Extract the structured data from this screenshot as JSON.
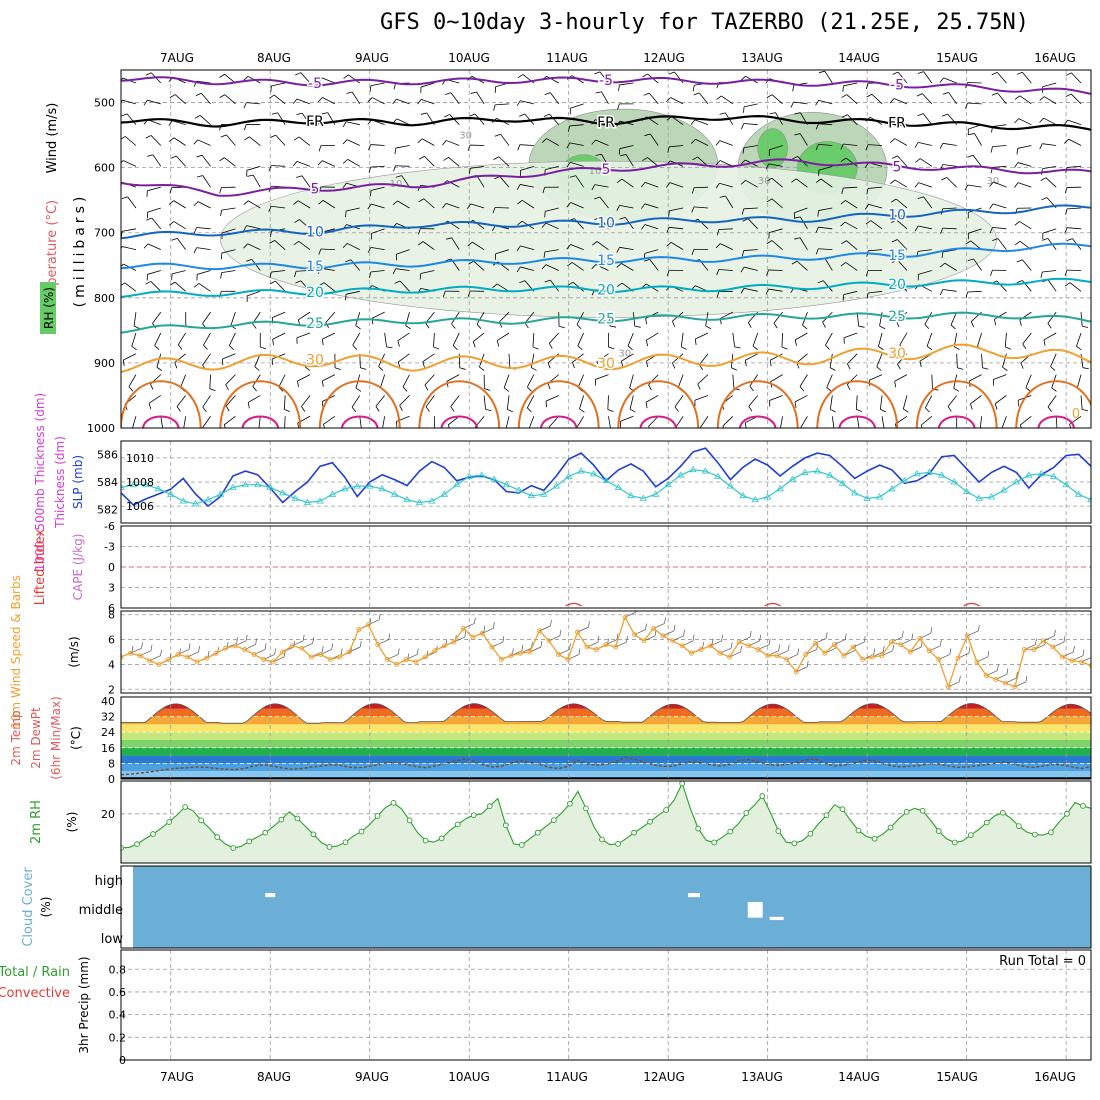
{
  "title": "GFS 0~10day 3-hourly for TAZERBO (21.25E, 25.75N)",
  "colors": {
    "grid": "#9a9a9a",
    "rh_shade_light": "#e6f2e4",
    "rh_shade_mid": "#b9d5b5",
    "rh_shade_dark": "#8fb18b",
    "rh_shade_green": "#66cc66",
    "temp_cold": "#7b1fa2",
    "temp_10": "#1565c0",
    "temp_15": "#1e88e5",
    "temp_20": "#00acc1",
    "temp_25": "#26a69a",
    "temp_30": "#f0a030",
    "temp_35": "#e07020",
    "temp_40": "#d81b8a",
    "freezing": "#000000",
    "slp": "#1f3fcf",
    "thickness": "#33c6cc",
    "lifted_index": "#e53935",
    "wind_speed": "#f0a030",
    "rh2m": "#2e9e2e",
    "rh2m_fill": "#e3f0de",
    "cloud": "#6baed6",
    "precip_total": "#2e9e2e",
    "precip_conv": "#e53935"
  },
  "chart_data": [
    {
      "panel": "upper-air",
      "type": "heatmap",
      "legend": [
        "Wind (m/s)",
        "Temperature (°C)",
        "RH (%)"
      ],
      "ylabel": "(millibars)",
      "ylim": [
        1000,
        450
      ],
      "y_ticks": [
        500,
        600,
        700,
        800,
        900,
        1000
      ],
      "x_ticks": [
        "7AUG",
        "8AUG",
        "9AUG",
        "10AUG",
        "11AUG",
        "12AUG",
        "13AUG",
        "14AUG",
        "15AUG",
        "16AUG"
      ],
      "x_tick_days": [
        0.5,
        1.5,
        2.5,
        3.5,
        4.5,
        5.5,
        6.5,
        7.5,
        8.5,
        9.5
      ],
      "x_range_days": [
        0.0,
        9.75
      ],
      "grid": true,
      "isotherms": [
        {
          "label": "-5",
          "levels_mb": [
            463,
            468,
            470,
            468,
            466,
            465,
            467,
            470,
            472,
            478,
            485
          ]
        },
        {
          "label": "FR",
          "levels_mb": [
            527,
            533,
            528,
            531,
            525,
            530,
            522,
            527,
            531,
            536,
            540
          ]
        },
        {
          "label": "5",
          "levels_mb": [
            620,
            640,
            632,
            628,
            612,
            602,
            596,
            590,
            598,
            603,
            608
          ]
        },
        {
          "label": "10",
          "levels_mb": [
            705,
            700,
            698,
            688,
            687,
            684,
            680,
            680,
            672,
            667,
            660
          ]
        },
        {
          "label": "15",
          "levels_mb": [
            751,
            752,
            751,
            748,
            744,
            742,
            741,
            738,
            734,
            725,
            719
          ]
        },
        {
          "label": "20",
          "levels_mb": [
            795,
            793,
            791,
            788,
            786,
            787,
            786,
            783,
            779,
            776,
            774
          ]
        },
        {
          "label": "25",
          "levels_mb": [
            850,
            842,
            839,
            835,
            836,
            832,
            830,
            828,
            828,
            826,
            835
          ]
        },
        {
          "label": "30",
          "levels_mb": [
            905,
            900,
            895,
            902,
            898,
            900,
            895,
            893,
            885,
            880,
            895
          ]
        }
      ],
      "contour_labels": [
        "-5",
        "FR",
        "5",
        "10",
        "15",
        "20",
        "25",
        "30",
        "0"
      ],
      "rh_contour_labels": [
        "30",
        "10"
      ],
      "rh_moist_regions": [
        {
          "t_days": [
            4.1,
            6.0
          ],
          "mb": [
            510,
            680
          ],
          "level": "dark"
        },
        {
          "t_days": [
            6.2,
            7.7
          ],
          "mb": [
            515,
            690
          ],
          "level": "dark"
        },
        {
          "t_days": [
            4.4,
            4.9
          ],
          "mb": [
            580,
            650
          ],
          "level": "green"
        },
        {
          "t_days": [
            6.4,
            6.7
          ],
          "mb": [
            540,
            600
          ],
          "level": "green"
        },
        {
          "t_days": [
            6.8,
            7.4
          ],
          "mb": [
            560,
            640
          ],
          "level": "green"
        },
        {
          "t_days": [
            1.0,
            8.8
          ],
          "mb": [
            590,
            830
          ],
          "level": "light"
        }
      ]
    },
    {
      "panel": "slp-thickness",
      "type": "line",
      "legend": [
        "1000~500mb Thickness (dm)",
        "SLP (mb)"
      ],
      "ylabel_left": "Thickness (dm)",
      "ylabel_right": "SLP (mb)",
      "left_ticks": [
        582,
        584,
        586
      ],
      "right_ticks": [
        1006,
        1008,
        1010
      ],
      "left_range": [
        581.0,
        587.0
      ],
      "right_range": [
        1004.6,
        1011.4
      ],
      "x_step_hours": 3,
      "series": [
        {
          "name": "SLP (mb)",
          "axis": "right",
          "values": [
            1007.1,
            1006.1,
            1006.6,
            1007.0,
            1007.4,
            1008.3,
            1007.0,
            1006.0,
            1006.8,
            1008.5,
            1008.9,
            1008.6,
            1007.5,
            1006.3,
            1007.2,
            1008.0,
            1009.3,
            1009.6,
            1008.4,
            1006.8,
            1008.0,
            1008.6,
            1008.2,
            1007.7,
            1008.9,
            1009.7,
            1009.2,
            1008.1,
            1008.4,
            1008.5,
            1008.2,
            1007.2,
            1007.1,
            1007.7,
            1007.3,
            1008.5,
            1009.9,
            1010.4,
            1009.4,
            1008.1,
            1009.0,
            1009.5,
            1008.9,
            1007.6,
            1008.3,
            1009.3,
            1010.5,
            1010.8,
            1009.6,
            1008.2,
            1009.2,
            1009.9,
            1009.4,
            1008.5,
            1009.3,
            1010.0,
            1010.4,
            1010.2,
            1009.3,
            1008.3,
            1008.9,
            1009.4,
            1009.0,
            1007.9,
            1008.1,
            1008.7,
            1010.1,
            1010.2,
            1009.1,
            1008.0,
            1008.8,
            1009.3,
            1008.8,
            1007.5,
            1008.6,
            1009.2,
            1010.2,
            1010.3,
            1009.3,
            1008.0,
            1008.5,
            1008.9,
            1008.4,
            1007.4,
            1007.8,
            1008.5,
            1009.6,
            1010.1,
            1008.9,
            1007.3,
            1007.3,
            1008.3,
            1007.9,
            1006.3,
            1007.6,
            1008.1,
            1008.5,
            1009.2,
            1008.2,
            1007.0,
            1007.2,
            1007.2,
            1008.0
          ]
        },
        {
          "name": "1000~500mb Thickness (dm)",
          "axis": "left",
          "values": [
            583.6,
            583.8,
            583.8,
            583.5,
            583.1,
            582.6,
            582.4,
            582.7,
            583.1,
            583.6,
            583.8,
            583.8,
            583.6,
            583.2,
            582.8,
            582.5,
            582.6,
            583.1,
            583.5,
            583.7,
            583.7,
            583.5,
            583.1,
            582.7,
            582.5,
            582.6,
            583.1,
            583.8,
            584.4,
            584.5,
            584.2,
            583.8,
            583.4,
            583.0,
            583.1,
            583.7,
            584.4,
            584.8,
            584.6,
            584.1,
            583.6,
            583.0,
            582.8,
            583.1,
            583.8,
            584.5,
            584.9,
            584.8,
            584.4,
            583.7,
            583.0,
            582.7,
            582.9,
            583.5,
            584.2,
            584.7,
            584.8,
            584.5,
            583.9,
            583.2,
            582.8,
            582.9,
            583.5,
            584.1,
            584.6,
            584.7,
            584.5,
            584.0,
            583.3,
            582.8,
            582.9,
            583.4,
            584.0,
            584.5,
            584.6,
            584.4,
            583.8,
            583.1,
            582.7,
            582.9,
            583.5,
            584.1,
            584.6,
            584.7,
            584.3,
            583.6,
            583.0,
            582.8,
            583.2,
            583.9,
            584.5,
            584.8,
            584.5,
            583.9,
            583.3,
            582.9,
            583.0,
            583.5,
            584.1,
            584.4,
            584.0,
            583.6,
            583.8
          ]
        }
      ]
    },
    {
      "panel": "stability",
      "type": "line",
      "legend": [
        "Lifted Index",
        "CAPE (J/kg)"
      ],
      "y_ticks": [
        -6,
        -3,
        0,
        3,
        6
      ],
      "y_range": [
        -6,
        6
      ],
      "reference_line": 0,
      "series": [
        {
          "name": "CAPE (J/kg)",
          "values_summary": "near zero; small bumps around 11AUG 12Z, 13AUG 12Z, 15AUG 12Z"
        }
      ]
    },
    {
      "panel": "10m-wind",
      "type": "line",
      "legend": [
        "10m Wind Speed & Barbs",
        "(m/s)"
      ],
      "y_ticks": [
        2,
        4,
        6,
        8
      ],
      "y_range": [
        1.7,
        8.3
      ],
      "series": [
        {
          "name": "Speed",
          "values": [
            4.6,
            4.9,
            4.7,
            4.3,
            4.0,
            4.4,
            4.8,
            4.6,
            4.2,
            4.5,
            4.9,
            5.3,
            5.5,
            5.2,
            4.8,
            4.4,
            4.2,
            5.0,
            5.5,
            5.3,
            4.6,
            4.8,
            4.4,
            4.6,
            5.0,
            6.8,
            7.2,
            5.6,
            4.4,
            4.0,
            4.4,
            4.2,
            4.6,
            5.1,
            5.5,
            5.8,
            6.9,
            6.2,
            6.5,
            5.4,
            4.4,
            4.7,
            4.9,
            5.0,
            6.7,
            5.9,
            4.8,
            4.4,
            6.6,
            5.4,
            5.2,
            5.6,
            5.4,
            7.8,
            6.4,
            5.9,
            6.9,
            6.3,
            5.9,
            5.5,
            4.9,
            5.2,
            5.5,
            4.9,
            4.6,
            5.8,
            5.5,
            5.2,
            4.7,
            4.7,
            4.4,
            3.4,
            4.8,
            5.7,
            4.9,
            5.6,
            4.7,
            5.4,
            4.4,
            4.6,
            4.7,
            5.8,
            5.6,
            5.0,
            6.1,
            5.1,
            4.4,
            2.2,
            4.5,
            6.3,
            4.2,
            3.1,
            2.8,
            2.5,
            2.2,
            5.2,
            5.2,
            5.9,
            5.4,
            4.6,
            4.3,
            4.2,
            3.9
          ]
        }
      ]
    },
    {
      "panel": "2m-temp",
      "type": "area",
      "legend": [
        "2m Temp",
        "2m DewPt",
        "(6hr Min/Max)",
        "(°C)"
      ],
      "y_ticks": [
        0,
        8,
        16,
        24,
        32,
        40
      ],
      "y_range": [
        0,
        42
      ],
      "daily_max": [
        38.5,
        38.5,
        38.6,
        38.6,
        38.5,
        38.3,
        38.4,
        38.6,
        38.7,
        38.3
      ],
      "daily_min": [
        29.0,
        28.6,
        28.9,
        29.4,
        29.5,
        29.1,
        29.0,
        29.3,
        29.4,
        29.1
      ],
      "dewpoint_values": [
        2.2,
        2.5,
        3.0,
        3.6,
        4.3,
        5.0,
        5.6,
        5.8,
        6.2,
        6.0,
        5.4,
        5.0,
        4.8,
        5.4,
        6.8,
        7.2,
        6.6,
        5.6,
        5.0,
        5.4,
        6.1,
        6.6,
        7.3,
        7.0,
        6.0,
        5.8,
        6.3,
        7.3,
        8.5,
        8.1,
        7.5,
        6.4,
        5.8,
        6.6,
        7.8,
        9.0,
        10.2,
        9.2,
        7.4,
        6.1,
        6.5,
        8.2,
        9.3,
        8.7,
        7.6,
        6.0,
        5.4,
        6.4,
        9.7,
        7.8,
        7.1,
        7.6,
        8.7,
        11.1,
        10.1,
        8.6,
        7.4,
        6.4,
        6.6,
        7.8,
        9.0,
        8.2,
        7.4,
        6.7,
        7.4,
        9.6,
        10.0,
        8.9,
        7.5,
        7.0,
        7.5,
        8.3,
        9.7,
        10.3,
        8.0,
        6.7,
        7.0,
        8.1,
        9.4,
        9.6,
        8.2,
        6.7,
        6.2,
        6.6,
        6.9,
        7.8,
        7.6,
        6.6,
        6.0,
        6.2,
        6.8,
        7.4,
        8.1,
        8.7,
        7.5,
        6.4,
        6.0,
        6.6,
        7.6,
        7.2,
        6.2,
        5.4,
        6.4
      ]
    },
    {
      "panel": "2m-rh",
      "type": "area",
      "legend": [
        "2m RH",
        "(%)"
      ],
      "y_ticks": [
        20
      ],
      "y_range": [
        2,
        32
      ],
      "series": [
        {
          "name": "2m RH",
          "values": [
            7.5,
            7.7,
            8.9,
            10.8,
            12.6,
            14.7,
            17.0,
            19.6,
            22.5,
            21.1,
            17.6,
            14.8,
            11.5,
            9.0,
            7.5,
            8.1,
            9.9,
            11.5,
            13.1,
            15.3,
            17.9,
            20.7,
            18.3,
            15.4,
            12.5,
            9.5,
            7.9,
            8.2,
            9.6,
            11.9,
            13.5,
            16.0,
            19.2,
            22.3,
            24.0,
            21.8,
            17.6,
            13.1,
            10.2,
            9.6,
            11.0,
            13.9,
            16.1,
            18.2,
            19.5,
            20.0,
            22.8,
            25.6,
            15.8,
            9.0,
            8.6,
            10.9,
            13.1,
            15.3,
            17.7,
            20.4,
            23.7,
            28.2,
            22.0,
            15.2,
            10.6,
            8.7,
            9.0,
            10.9,
            13.1,
            15.0,
            17.1,
            19.4,
            21.4,
            25.0,
            31.1,
            22.1,
            14.6,
            10.3,
            9.5,
            11.4,
            13.5,
            16.3,
            20.3,
            23.1,
            26.5,
            20.6,
            13.7,
            9.6,
            9.2,
            10.2,
            12.7,
            16.3,
            19.5,
            23.3,
            21.7,
            17.6,
            13.9,
            11.7,
            10.9,
            12.5,
            15.0,
            18.1,
            20.7,
            22.0,
            21.1,
            17.6,
            13.7,
            10.8,
            9.5,
            10.1,
            12.2,
            14.3,
            16.8,
            19.3,
            20.4,
            18.4,
            15.5,
            13.3,
            12.4,
            12.2,
            13.2,
            16.9,
            20.0,
            24.1,
            22.9,
            22.0
          ]
        }
      ]
    },
    {
      "panel": "cloud-cover",
      "type": "heatmap",
      "legend": [
        "Cloud Cover",
        "(%)"
      ],
      "y_ticks": [
        "high",
        "middle",
        "low"
      ],
      "gaps": [
        {
          "layer": "high",
          "t_days": [
            1.45,
            1.55
          ],
          "band": [
            0.33,
            0.38
          ]
        },
        {
          "layer": "high",
          "t_days": [
            5.7,
            5.82
          ],
          "band": [
            0.33,
            0.38
          ]
        },
        {
          "layer": "middle",
          "t_days": [
            6.3,
            6.45
          ],
          "band": [
            0.44,
            0.63
          ]
        },
        {
          "layer": "middle",
          "t_days": [
            6.52,
            6.66
          ],
          "band": [
            0.62,
            0.66
          ]
        }
      ]
    },
    {
      "panel": "precip",
      "type": "bar",
      "legend": [
        "Total / Rain",
        "Convective",
        "3hr Precip (mm)"
      ],
      "y_ticks": [
        0,
        0.2,
        0.4,
        0.6,
        0.8
      ],
      "y_range": [
        0,
        0.97
      ],
      "run_total_label": "Run Total = 0",
      "values": []
    }
  ]
}
